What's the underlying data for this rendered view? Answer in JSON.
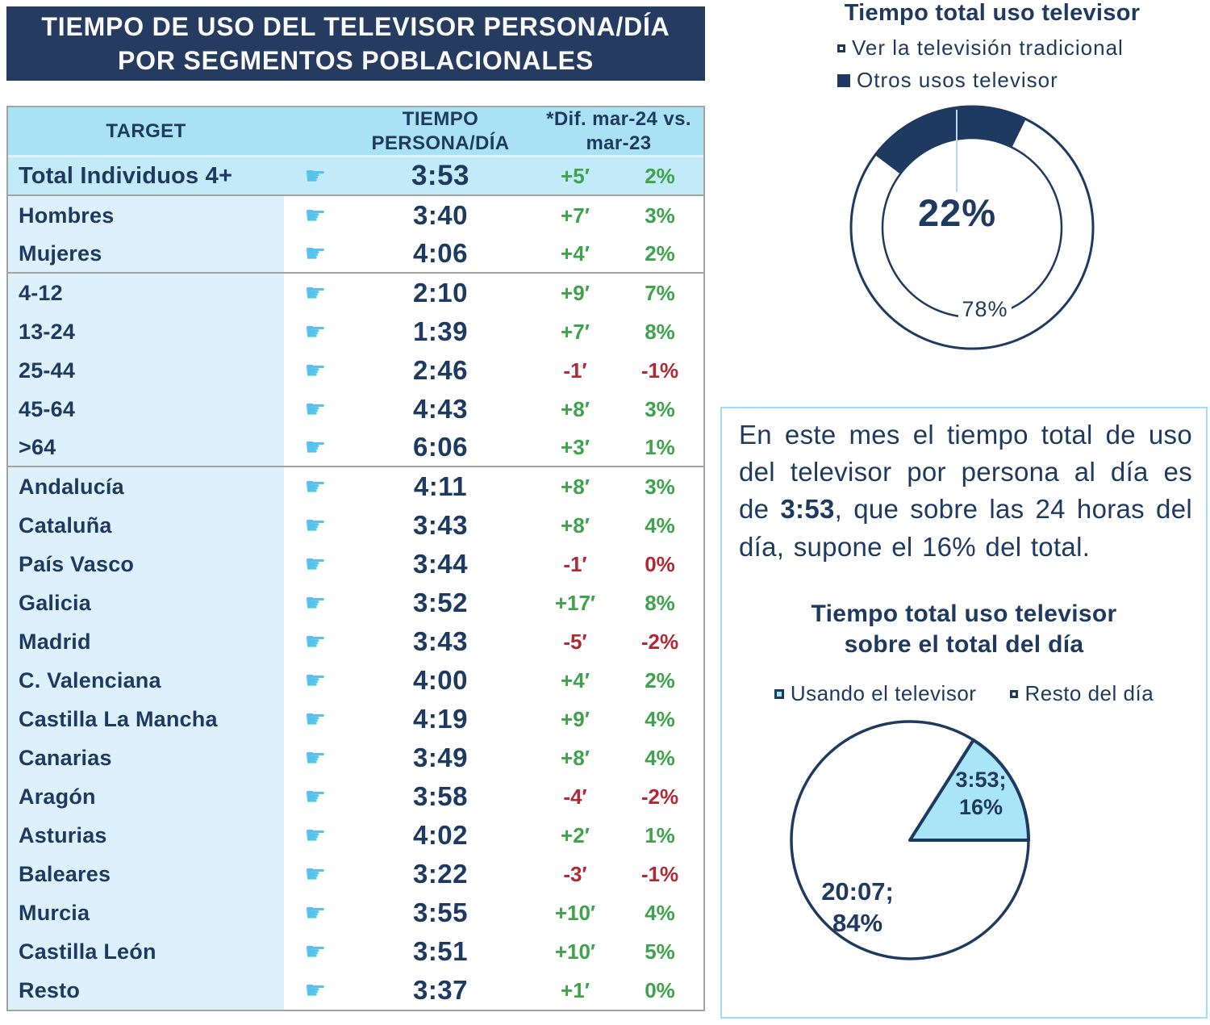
{
  "page": {
    "title_line1": "TIEMPO DE USO DEL TELEVISOR PERSONA/DÍA",
    "title_line2": "POR SEGMENTOS POBLACIONALES"
  },
  "colors": {
    "navy": "#1F3A60",
    "title_bar_bg": "#253C60",
    "header_blue": "#A9E2F5",
    "total_row_blue": "#C3EAF9",
    "target_col_blue": "#DCF1FB",
    "finger_blue": "#55C3EE",
    "green": "#3FA34D",
    "red": "#AF2B33",
    "box_border_cyan": "#9EDFF4",
    "pie_slice_blue": "#A9E5F8",
    "table_border_gray": "#A3A3A3"
  },
  "table": {
    "header_target": "TARGET",
    "header_time_line1": "TIEMPO",
    "header_time_line2": "PERSONA/DÍA",
    "header_dif_line1": "*Dif. mar-24 vs.",
    "header_dif_line2": "mar-23",
    "finger_icon": "☛",
    "rows": [
      {
        "label": "Total Individuos 4+",
        "time": "3:53",
        "dif": "+5′",
        "pct": "2%",
        "color": "green",
        "total": true
      },
      {
        "label": "Hombres",
        "time": "3:40",
        "dif": "+7′",
        "pct": "3%",
        "color": "green"
      },
      {
        "label": "Mujeres",
        "time": "4:06",
        "dif": "+4′",
        "pct": "2%",
        "color": "green",
        "group_end": true
      },
      {
        "label": "4-12",
        "time": "2:10",
        "dif": "+9′",
        "pct": "7%",
        "color": "green"
      },
      {
        "label": "13-24",
        "time": "1:39",
        "dif": "+7′",
        "pct": "8%",
        "color": "green"
      },
      {
        "label": "25-44",
        "time": "2:46",
        "dif": "-1′",
        "pct": "-1%",
        "color": "red"
      },
      {
        "label": "45-64",
        "time": "4:43",
        "dif": "+8′",
        "pct": "3%",
        "color": "green"
      },
      {
        "label": ">64",
        "time": "6:06",
        "dif": "+3′",
        "pct": "1%",
        "color": "green",
        "group_end": true
      },
      {
        "label": "Andalucía",
        "time": "4:11",
        "dif": "+8′",
        "pct": "3%",
        "color": "green"
      },
      {
        "label": "Cataluña",
        "time": "3:43",
        "dif": "+8′",
        "pct": "4%",
        "color": "green"
      },
      {
        "label": "País Vasco",
        "time": "3:44",
        "dif": "-1′",
        "pct": "0%",
        "color": "red"
      },
      {
        "label": "Galicia",
        "time": "3:52",
        "dif": "+17′",
        "pct": "8%",
        "color": "green"
      },
      {
        "label": "Madrid",
        "time": "3:43",
        "dif": "-5′",
        "pct": "-2%",
        "color": "red"
      },
      {
        "label": "C. Valenciana",
        "time": "4:00",
        "dif": "+4′",
        "pct": "2%",
        "color": "green"
      },
      {
        "label": "Castilla La Mancha",
        "time": "4:19",
        "dif": "+9′",
        "pct": "4%",
        "color": "green"
      },
      {
        "label": "Canarias",
        "time": "3:49",
        "dif": "+8′",
        "pct": "4%",
        "color": "green"
      },
      {
        "label": "Aragón",
        "time": "3:58",
        "dif": "-4′",
        "pct": "-2%",
        "color": "red"
      },
      {
        "label": "Asturias",
        "time": "4:02",
        "dif": "+2′",
        "pct": "1%",
        "color": "green"
      },
      {
        "label": "Baleares",
        "time": "3:22",
        "dif": "-3′",
        "pct": "-1%",
        "color": "red"
      },
      {
        "label": "Murcia",
        "time": "3:55",
        "dif": "+10′",
        "pct": "4%",
        "color": "green"
      },
      {
        "label": "Castilla León",
        "time": "3:51",
        "dif": "+10′",
        "pct": "5%",
        "color": "green"
      },
      {
        "label": "Resto",
        "time": "3:37",
        "dif": "+1′",
        "pct": "0%",
        "color": "green"
      }
    ]
  },
  "donut": {
    "title": "Tiempo total uso televisor",
    "legend": [
      {
        "label": "Ver la televisión tradicional",
        "swatch": "outline"
      },
      {
        "label": "Otros usos televisor",
        "swatch": "filled"
      }
    ],
    "main_label": "22%",
    "secondary_label": "78%",
    "otros_pct": 22,
    "tradicional_pct": 78,
    "segment_start_deg": -53
  },
  "note": {
    "text_before": "En este mes el tiempo total de uso del televisor por persona al día es de ",
    "bold_value": "3:53",
    "text_after": ", que sobre las 24 horas del día, supone el 16% del total."
  },
  "pie": {
    "title_line1": "Tiempo total uso televisor",
    "title_line2": "sobre el total del día",
    "legend": [
      {
        "label": "Usando el televisor",
        "swatch": "blue"
      },
      {
        "label": "Resto del día",
        "swatch": "outline"
      }
    ],
    "slices": [
      {
        "label_line1": "3:53;",
        "label_line2": "16%",
        "value": 16
      },
      {
        "label_line1": "20:07;",
        "label_line2": "84%",
        "value": 84
      }
    ]
  },
  "chart_data": [
    {
      "type": "table",
      "title": "TIEMPO DE USO DEL TELEVISOR PERSONA/DÍA POR SEGMENTOS POBLACIONALES",
      "columns": [
        "TARGET",
        "TIEMPO PERSONA/DÍA",
        "*Dif. mar-24 vs. mar-23 (minutos)",
        "*Dif. mar-24 vs. mar-23 (%)"
      ],
      "rows": [
        [
          "Total Individuos 4+",
          "3:53",
          "+5′",
          "2%"
        ],
        [
          "Hombres",
          "3:40",
          "+7′",
          "3%"
        ],
        [
          "Mujeres",
          "4:06",
          "+4′",
          "2%"
        ],
        [
          "4-12",
          "2:10",
          "+9′",
          "7%"
        ],
        [
          "13-24",
          "1:39",
          "+7′",
          "8%"
        ],
        [
          "25-44",
          "2:46",
          "-1′",
          "-1%"
        ],
        [
          "45-64",
          "4:43",
          "+8′",
          "3%"
        ],
        [
          ">64",
          "6:06",
          "+3′",
          "1%"
        ],
        [
          "Andalucía",
          "4:11",
          "+8′",
          "3%"
        ],
        [
          "Cataluña",
          "3:43",
          "+8′",
          "4%"
        ],
        [
          "País Vasco",
          "3:44",
          "-1′",
          "0%"
        ],
        [
          "Galicia",
          "3:52",
          "+17′",
          "8%"
        ],
        [
          "Madrid",
          "3:43",
          "-5′",
          "-2%"
        ],
        [
          "C. Valenciana",
          "4:00",
          "+4′",
          "2%"
        ],
        [
          "Castilla La Mancha",
          "4:19",
          "+9′",
          "4%"
        ],
        [
          "Canarias",
          "3:49",
          "+8′",
          "4%"
        ],
        [
          "Aragón",
          "3:58",
          "-4′",
          "-2%"
        ],
        [
          "Asturias",
          "4:02",
          "+2′",
          "1%"
        ],
        [
          "Baleares",
          "3:22",
          "-3′",
          "-1%"
        ],
        [
          "Murcia",
          "3:55",
          "+10′",
          "4%"
        ],
        [
          "Castilla León",
          "3:51",
          "+10′",
          "5%"
        ],
        [
          "Resto",
          "3:37",
          "+1′",
          "0%"
        ]
      ]
    },
    {
      "type": "pie",
      "subtype": "donut",
      "title": "Tiempo total uso televisor",
      "labels": [
        "Ver la televisión tradicional",
        "Otros usos televisor"
      ],
      "values": [
        78,
        22
      ],
      "legend_position": "top-left"
    },
    {
      "type": "pie",
      "title": "Tiempo total uso televisor sobre el total del día",
      "labels": [
        "Usando el televisor",
        "Resto del día"
      ],
      "values": [
        16,
        84
      ],
      "annotations": [
        "3:53; 16%",
        "20:07; 84%"
      ],
      "legend_position": "top"
    }
  ]
}
